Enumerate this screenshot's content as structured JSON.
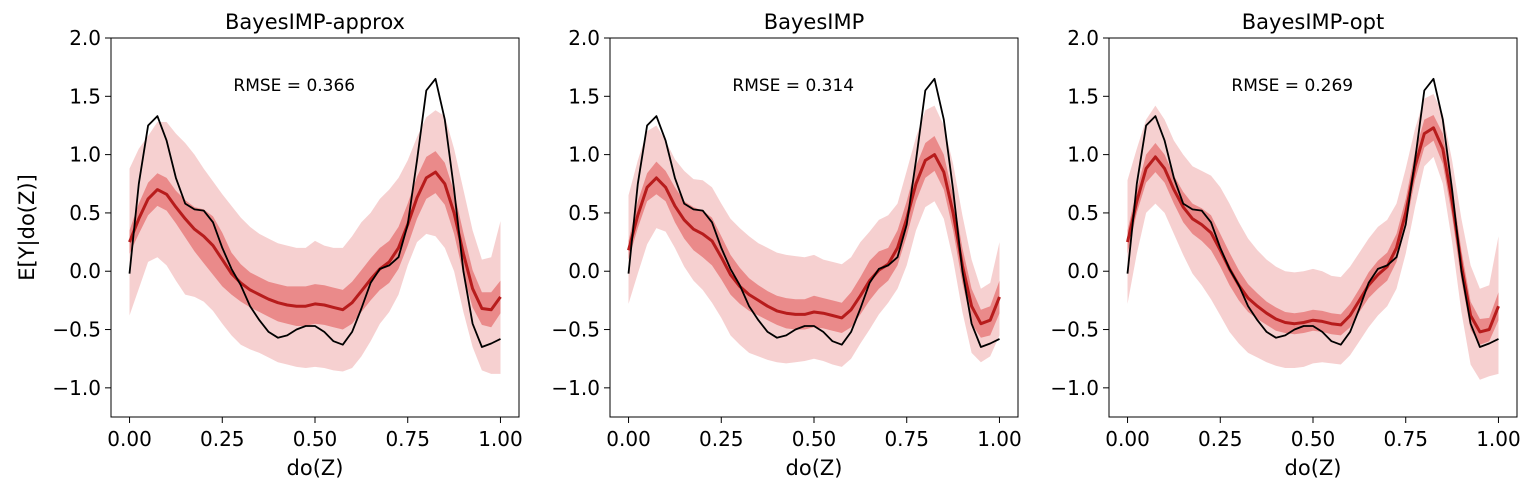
{
  "chart_data": [
    {
      "type": "line",
      "title": "BayesIMP-approx",
      "xlabel": "do(Z)",
      "ylabel": "E[Y|do(Z)]",
      "annotation": "RMSE = 0.366",
      "xlim": [
        -0.05,
        1.05
      ],
      "ylim": [
        -1.25,
        2.0
      ],
      "xticks": [
        0.0,
        0.25,
        0.5,
        0.75,
        1.0
      ],
      "xtick_labels": [
        "0.00",
        "0.25",
        "0.50",
        "0.75",
        "1.00"
      ],
      "yticks": [
        -1.0,
        -0.5,
        0.0,
        0.5,
        1.0,
        1.5,
        2.0
      ],
      "ytick_labels": [
        "−1.0",
        "−0.5",
        "0.0",
        "0.5",
        "1.0",
        "1.5",
        "2.0"
      ],
      "grid": false,
      "x": [
        0.0,
        0.025,
        0.05,
        0.075,
        0.1,
        0.125,
        0.15,
        0.175,
        0.2,
        0.225,
        0.25,
        0.275,
        0.3,
        0.325,
        0.35,
        0.375,
        0.4,
        0.425,
        0.45,
        0.475,
        0.5,
        0.525,
        0.55,
        0.575,
        0.6,
        0.625,
        0.65,
        0.675,
        0.7,
        0.725,
        0.75,
        0.775,
        0.8,
        0.825,
        0.85,
        0.875,
        0.9,
        0.925,
        0.95,
        0.975,
        1.0
      ],
      "series": [
        {
          "role": "truth",
          "color": "#000000",
          "values": [
            -0.02,
            0.75,
            1.25,
            1.33,
            1.12,
            0.8,
            0.58,
            0.53,
            0.52,
            0.42,
            0.2,
            0.02,
            -0.12,
            -0.3,
            -0.42,
            -0.52,
            -0.57,
            -0.55,
            -0.5,
            -0.47,
            -0.47,
            -0.52,
            -0.6,
            -0.63,
            -0.52,
            -0.32,
            -0.1,
            0.02,
            0.05,
            0.12,
            0.4,
            0.95,
            1.55,
            1.65,
            1.3,
            0.7,
            0.0,
            -0.45,
            -0.65,
            -0.62,
            -0.58
          ]
        },
        {
          "role": "mean",
          "color": "#b71c1c",
          "values": [
            0.25,
            0.45,
            0.62,
            0.7,
            0.66,
            0.55,
            0.45,
            0.36,
            0.3,
            0.22,
            0.1,
            -0.02,
            -0.1,
            -0.16,
            -0.2,
            -0.24,
            -0.27,
            -0.29,
            -0.3,
            -0.3,
            -0.28,
            -0.29,
            -0.31,
            -0.33,
            -0.27,
            -0.17,
            -0.07,
            0.02,
            0.08,
            0.2,
            0.4,
            0.63,
            0.8,
            0.85,
            0.75,
            0.5,
            0.15,
            -0.15,
            -0.32,
            -0.33,
            -0.22
          ]
        },
        {
          "role": "inner-band",
          "color": "#e05050",
          "opacity": 0.55,
          "lower": [
            0.15,
            0.32,
            0.48,
            0.56,
            0.52,
            0.41,
            0.29,
            0.17,
            0.07,
            -0.03,
            -0.13,
            -0.2,
            -0.26,
            -0.31,
            -0.35,
            -0.39,
            -0.43,
            -0.45,
            -0.47,
            -0.47,
            -0.45,
            -0.46,
            -0.48,
            -0.5,
            -0.45,
            -0.35,
            -0.25,
            -0.16,
            -0.1,
            0.02,
            0.22,
            0.45,
            0.62,
            0.67,
            0.57,
            0.32,
            -0.03,
            -0.31,
            -0.46,
            -0.48,
            -0.36
          ],
          "upper": [
            0.35,
            0.58,
            0.76,
            0.84,
            0.8,
            0.69,
            0.61,
            0.55,
            0.53,
            0.47,
            0.33,
            0.16,
            0.06,
            -0.01,
            -0.05,
            -0.09,
            -0.11,
            -0.13,
            -0.13,
            -0.13,
            -0.11,
            -0.12,
            -0.14,
            -0.16,
            -0.09,
            0.01,
            0.11,
            0.2,
            0.26,
            0.38,
            0.58,
            0.81,
            0.98,
            1.03,
            0.93,
            0.68,
            0.33,
            0.01,
            -0.18,
            -0.18,
            -0.08
          ]
        },
        {
          "role": "outer-band",
          "color": "#e88a8a",
          "opacity": 0.4,
          "lower": [
            -0.38,
            -0.15,
            0.08,
            0.12,
            0.05,
            -0.08,
            -0.2,
            -0.22,
            -0.26,
            -0.34,
            -0.45,
            -0.55,
            -0.63,
            -0.67,
            -0.7,
            -0.74,
            -0.78,
            -0.8,
            -0.82,
            -0.83,
            -0.82,
            -0.83,
            -0.85,
            -0.86,
            -0.83,
            -0.73,
            -0.6,
            -0.45,
            -0.35,
            -0.2,
            0.05,
            0.25,
            0.32,
            0.3,
            0.2,
            0.0,
            -0.35,
            -0.65,
            -0.85,
            -0.88,
            -0.88
          ],
          "upper": [
            0.88,
            1.05,
            1.16,
            1.28,
            1.28,
            1.18,
            1.1,
            1.0,
            0.88,
            0.77,
            0.66,
            0.56,
            0.46,
            0.38,
            0.32,
            0.28,
            0.24,
            0.22,
            0.2,
            0.2,
            0.26,
            0.22,
            0.2,
            0.2,
            0.3,
            0.42,
            0.5,
            0.62,
            0.7,
            0.8,
            0.95,
            1.15,
            1.32,
            1.38,
            1.33,
            1.05,
            0.7,
            0.35,
            0.1,
            0.12,
            0.43
          ]
        }
      ]
    },
    {
      "type": "line",
      "title": "BayesIMP",
      "xlabel": "do(Z)",
      "ylabel": "",
      "annotation": "RMSE = 0.314",
      "xlim": [
        -0.05,
        1.05
      ],
      "ylim": [
        -1.25,
        2.0
      ],
      "xticks": [
        0.0,
        0.25,
        0.5,
        0.75,
        1.0
      ],
      "xtick_labels": [
        "0.00",
        "0.25",
        "0.50",
        "0.75",
        "1.00"
      ],
      "yticks": [
        -1.0,
        -0.5,
        0.0,
        0.5,
        1.0,
        1.5,
        2.0
      ],
      "ytick_labels": [
        "−1.0",
        "−0.5",
        "0.0",
        "0.5",
        "1.0",
        "1.5",
        "2.0"
      ],
      "grid": false,
      "x": [
        0.0,
        0.025,
        0.05,
        0.075,
        0.1,
        0.125,
        0.15,
        0.175,
        0.2,
        0.225,
        0.25,
        0.275,
        0.3,
        0.325,
        0.35,
        0.375,
        0.4,
        0.425,
        0.45,
        0.475,
        0.5,
        0.525,
        0.55,
        0.575,
        0.6,
        0.625,
        0.65,
        0.675,
        0.7,
        0.725,
        0.75,
        0.775,
        0.8,
        0.825,
        0.85,
        0.875,
        0.9,
        0.925,
        0.95,
        0.975,
        1.0
      ],
      "series": [
        {
          "role": "truth",
          "color": "#000000",
          "values": [
            -0.02,
            0.75,
            1.25,
            1.33,
            1.12,
            0.8,
            0.58,
            0.53,
            0.52,
            0.42,
            0.2,
            0.02,
            -0.12,
            -0.3,
            -0.42,
            -0.52,
            -0.57,
            -0.55,
            -0.5,
            -0.47,
            -0.47,
            -0.52,
            -0.6,
            -0.63,
            -0.52,
            -0.32,
            -0.1,
            0.02,
            0.05,
            0.12,
            0.4,
            0.95,
            1.55,
            1.65,
            1.3,
            0.7,
            0.0,
            -0.45,
            -0.65,
            -0.62,
            -0.58
          ]
        },
        {
          "role": "mean",
          "color": "#b71c1c",
          "values": [
            0.18,
            0.48,
            0.72,
            0.8,
            0.72,
            0.56,
            0.44,
            0.36,
            0.32,
            0.26,
            0.12,
            -0.03,
            -0.13,
            -0.2,
            -0.25,
            -0.3,
            -0.34,
            -0.36,
            -0.37,
            -0.37,
            -0.35,
            -0.36,
            -0.38,
            -0.4,
            -0.33,
            -0.21,
            -0.08,
            0.01,
            0.06,
            0.2,
            0.45,
            0.75,
            0.95,
            1.0,
            0.85,
            0.5,
            0.05,
            -0.3,
            -0.45,
            -0.42,
            -0.22
          ]
        },
        {
          "role": "inner-band",
          "color": "#e05050",
          "opacity": 0.55,
          "lower": [
            0.1,
            0.37,
            0.6,
            0.66,
            0.6,
            0.42,
            0.28,
            0.18,
            0.12,
            0.05,
            -0.07,
            -0.2,
            -0.28,
            -0.34,
            -0.38,
            -0.42,
            -0.46,
            -0.49,
            -0.5,
            -0.5,
            -0.48,
            -0.49,
            -0.51,
            -0.53,
            -0.48,
            -0.37,
            -0.25,
            -0.15,
            -0.08,
            0.05,
            0.3,
            0.6,
            0.8,
            0.86,
            0.7,
            0.35,
            -0.1,
            -0.45,
            -0.57,
            -0.55,
            -0.36
          ],
          "upper": [
            0.26,
            0.6,
            0.84,
            0.94,
            0.86,
            0.72,
            0.6,
            0.55,
            0.52,
            0.46,
            0.3,
            0.14,
            0.03,
            -0.06,
            -0.12,
            -0.17,
            -0.21,
            -0.23,
            -0.24,
            -0.24,
            -0.21,
            -0.23,
            -0.25,
            -0.27,
            -0.18,
            -0.05,
            0.09,
            0.17,
            0.2,
            0.35,
            0.6,
            0.9,
            1.1,
            1.16,
            1.0,
            0.65,
            0.2,
            -0.15,
            -0.33,
            -0.3,
            -0.08
          ]
        },
        {
          "role": "outer-band",
          "color": "#e88a8a",
          "opacity": 0.4,
          "lower": [
            -0.28,
            -0.02,
            0.23,
            0.37,
            0.34,
            0.2,
            0.04,
            -0.08,
            -0.16,
            -0.27,
            -0.4,
            -0.55,
            -0.63,
            -0.7,
            -0.73,
            -0.76,
            -0.78,
            -0.79,
            -0.78,
            -0.77,
            -0.75,
            -0.77,
            -0.8,
            -0.82,
            -0.75,
            -0.62,
            -0.5,
            -0.37,
            -0.27,
            -0.15,
            0.05,
            0.35,
            0.55,
            0.6,
            0.45,
            0.1,
            -0.35,
            -0.7,
            -0.78,
            -0.73,
            -0.55
          ],
          "upper": [
            0.65,
            0.95,
            1.2,
            1.25,
            1.12,
            0.96,
            0.86,
            0.79,
            0.78,
            0.72,
            0.58,
            0.45,
            0.37,
            0.3,
            0.24,
            0.2,
            0.16,
            0.14,
            0.13,
            0.12,
            0.14,
            0.1,
            0.08,
            0.06,
            0.12,
            0.25,
            0.34,
            0.44,
            0.48,
            0.58,
            0.86,
            1.15,
            1.38,
            1.42,
            1.25,
            0.92,
            0.48,
            0.1,
            -0.15,
            -0.1,
            0.25
          ]
        }
      ]
    },
    {
      "type": "line",
      "title": "BayesIMP-opt",
      "xlabel": "do(Z)",
      "ylabel": "",
      "annotation": "RMSE = 0.269",
      "xlim": [
        -0.05,
        1.05
      ],
      "ylim": [
        -1.25,
        2.0
      ],
      "xticks": [
        0.0,
        0.25,
        0.5,
        0.75,
        1.0
      ],
      "xtick_labels": [
        "0.00",
        "0.25",
        "0.50",
        "0.75",
        "1.00"
      ],
      "yticks": [
        -1.0,
        -0.5,
        0.0,
        0.5,
        1.0,
        1.5,
        2.0
      ],
      "ytick_labels": [
        "−1.0",
        "−0.5",
        "0.0",
        "0.5",
        "1.0",
        "1.5",
        "2.0"
      ],
      "grid": false,
      "x": [
        0.0,
        0.025,
        0.05,
        0.075,
        0.1,
        0.125,
        0.15,
        0.175,
        0.2,
        0.225,
        0.25,
        0.275,
        0.3,
        0.325,
        0.35,
        0.375,
        0.4,
        0.425,
        0.45,
        0.475,
        0.5,
        0.525,
        0.55,
        0.575,
        0.6,
        0.625,
        0.65,
        0.675,
        0.7,
        0.725,
        0.75,
        0.775,
        0.8,
        0.825,
        0.85,
        0.875,
        0.9,
        0.925,
        0.95,
        0.975,
        1.0
      ],
      "series": [
        {
          "role": "truth",
          "color": "#000000",
          "values": [
            -0.02,
            0.75,
            1.25,
            1.33,
            1.12,
            0.8,
            0.58,
            0.53,
            0.52,
            0.42,
            0.2,
            0.02,
            -0.12,
            -0.3,
            -0.42,
            -0.52,
            -0.57,
            -0.55,
            -0.5,
            -0.47,
            -0.47,
            -0.52,
            -0.6,
            -0.63,
            -0.52,
            -0.32,
            -0.1,
            0.02,
            0.05,
            0.12,
            0.4,
            0.95,
            1.55,
            1.65,
            1.3,
            0.7,
            0.0,
            -0.45,
            -0.65,
            -0.62,
            -0.58
          ]
        },
        {
          "role": "mean",
          "color": "#b71c1c",
          "values": [
            0.25,
            0.6,
            0.88,
            0.98,
            0.88,
            0.7,
            0.55,
            0.45,
            0.4,
            0.33,
            0.18,
            0.02,
            -0.12,
            -0.23,
            -0.3,
            -0.36,
            -0.41,
            -0.44,
            -0.45,
            -0.44,
            -0.42,
            -0.43,
            -0.45,
            -0.46,
            -0.38,
            -0.25,
            -0.12,
            -0.03,
            0.04,
            0.2,
            0.5,
            0.9,
            1.18,
            1.23,
            1.05,
            0.6,
            0.05,
            -0.38,
            -0.52,
            -0.5,
            -0.3
          ]
        },
        {
          "role": "inner-band",
          "color": "#e05050",
          "opacity": 0.55,
          "lower": [
            0.15,
            0.5,
            0.76,
            0.85,
            0.76,
            0.58,
            0.42,
            0.32,
            0.26,
            0.18,
            0.04,
            -0.12,
            -0.25,
            -0.35,
            -0.41,
            -0.46,
            -0.51,
            -0.53,
            -0.54,
            -0.53,
            -0.51,
            -0.52,
            -0.54,
            -0.55,
            -0.48,
            -0.35,
            -0.23,
            -0.15,
            -0.08,
            0.08,
            0.38,
            0.78,
            1.06,
            1.12,
            0.92,
            0.47,
            -0.08,
            -0.5,
            -0.63,
            -0.6,
            -0.42
          ],
          "upper": [
            0.35,
            0.7,
            1.0,
            1.1,
            1.0,
            0.82,
            0.68,
            0.58,
            0.54,
            0.48,
            0.32,
            0.16,
            0.01,
            -0.11,
            -0.19,
            -0.26,
            -0.31,
            -0.35,
            -0.36,
            -0.35,
            -0.33,
            -0.34,
            -0.36,
            -0.37,
            -0.28,
            -0.15,
            -0.01,
            0.09,
            0.16,
            0.32,
            0.62,
            1.02,
            1.3,
            1.34,
            1.18,
            0.73,
            0.18,
            -0.26,
            -0.41,
            -0.4,
            -0.18
          ]
        },
        {
          "role": "outer-band",
          "color": "#e88a8a",
          "opacity": 0.4,
          "lower": [
            -0.28,
            0.15,
            0.5,
            0.58,
            0.5,
            0.32,
            0.14,
            -0.02,
            -0.12,
            -0.24,
            -0.38,
            -0.52,
            -0.62,
            -0.7,
            -0.74,
            -0.78,
            -0.81,
            -0.83,
            -0.83,
            -0.82,
            -0.79,
            -0.78,
            -0.79,
            -0.8,
            -0.72,
            -0.6,
            -0.48,
            -0.38,
            -0.3,
            -0.15,
            0.15,
            0.55,
            0.9,
            0.98,
            0.75,
            0.25,
            -0.35,
            -0.8,
            -0.93,
            -0.9,
            -0.88
          ],
          "upper": [
            0.78,
            1.05,
            1.3,
            1.42,
            1.3,
            1.12,
            1.0,
            0.9,
            0.86,
            0.82,
            0.72,
            0.58,
            0.42,
            0.28,
            0.18,
            0.1,
            0.04,
            0.0,
            -0.01,
            0.0,
            0.02,
            0.0,
            -0.04,
            -0.05,
            0.04,
            0.16,
            0.28,
            0.38,
            0.44,
            0.58,
            0.88,
            1.22,
            1.48,
            1.52,
            1.35,
            0.95,
            0.45,
            0.05,
            -0.15,
            -0.12,
            0.3
          ]
        }
      ]
    }
  ]
}
